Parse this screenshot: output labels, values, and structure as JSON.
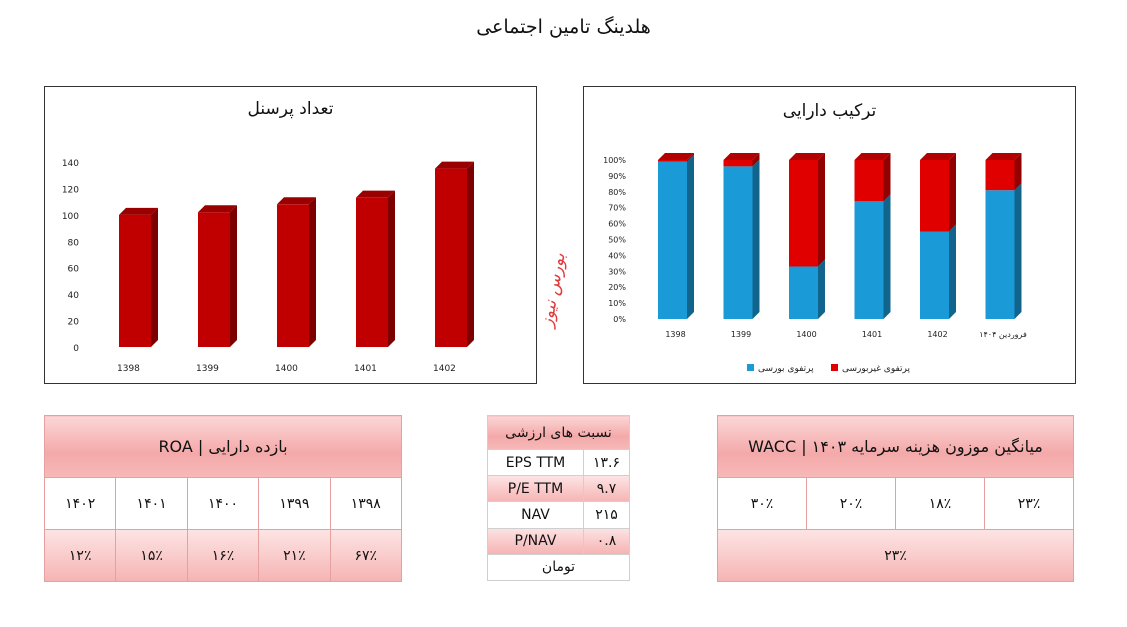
{
  "page_title": "هلدینگ تامین اجتماعی",
  "watermark": "بورس نیوز",
  "chart_data": [
    {
      "type": "bar",
      "title": "تعداد پرسنل",
      "categories": [
        "1398",
        "1399",
        "1400",
        "1401",
        "1402"
      ],
      "values": [
        100,
        102,
        108,
        113,
        135
      ],
      "ylim": [
        0,
        140
      ],
      "yticks": [
        "0",
        "20",
        "40",
        "60",
        "80",
        "100",
        "120",
        "140"
      ],
      "color": "#c00000"
    },
    {
      "type": "bar",
      "subtype": "stacked-percent",
      "title": "ترکیب دارایی",
      "categories": [
        "1398",
        "1399",
        "1400",
        "1401",
        "1402",
        "فروردین ۱۴۰۴"
      ],
      "series": [
        {
          "name": "پرتفوی بورسی",
          "color": "#1a9ad6",
          "values": [
            99,
            96,
            33,
            74,
            55,
            81
          ]
        },
        {
          "name": "پرتفوی غیربورسی",
          "color": "#e00000",
          "values": [
            1,
            4,
            67,
            26,
            45,
            19
          ]
        }
      ],
      "ylim": [
        0,
        100
      ],
      "yticks": [
        "0%",
        "10%",
        "20%",
        "30%",
        "40%",
        "50%",
        "60%",
        "70%",
        "80%",
        "90%",
        "100%"
      ]
    }
  ],
  "roa": {
    "title": "بازده دارایی | ROA",
    "years": [
      "۱۳۹۸",
      "۱۳۹۹",
      "۱۴۰۰",
      "۱۴۰۱",
      "۱۴۰۲"
    ],
    "values": [
      "۶۷٪",
      "۲۱٪",
      "۱۶٪",
      "۱۵٪",
      "۱۲٪"
    ]
  },
  "ratios": {
    "title": "نسبت های ارزشی",
    "rows": [
      {
        "label": "EPS TTM",
        "value": "۱۳.۶"
      },
      {
        "label": "P/E TTM",
        "value": "۹.۷"
      },
      {
        "label": "NAV",
        "value": "۲۱۵"
      },
      {
        "label": "P/NAV",
        "value": "۰.۸"
      }
    ],
    "unit": "تومان"
  },
  "wacc": {
    "title": "میانگین موزون هزینه سرمایه ۱۴۰۳ | WACC",
    "components": [
      "۲۳٪",
      "۱۸٪",
      "۲۰٪",
      "۳۰٪"
    ],
    "total": "۲۳٪"
  }
}
